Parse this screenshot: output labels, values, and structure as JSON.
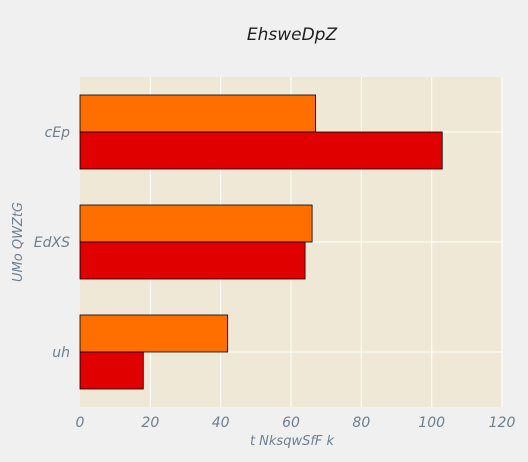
{
  "chart_data": {
    "type": "bar",
    "orientation": "horizontal",
    "title": "EhsweDpZ",
    "xlabel": "t NksqwSfF k",
    "ylabel": "UMo QWZtG",
    "categories": [
      "cEp",
      "EdXS",
      "uh"
    ],
    "series": [
      {
        "values": [
          67,
          66,
          42
        ],
        "color": "#ff6f00"
      },
      {
        "values": [
          103,
          64,
          18
        ],
        "color": "#e00000"
      }
    ],
    "xlim": [
      0,
      120
    ],
    "xticks": [
      0,
      20,
      40,
      60,
      80,
      100,
      120
    ],
    "grid": true,
    "legend": "none",
    "plot_background": "#efe8d7",
    "page_background": "#f0f0f0"
  }
}
